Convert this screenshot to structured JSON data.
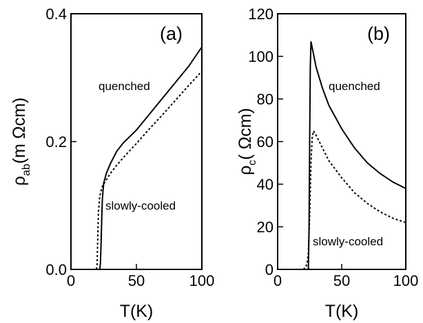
{
  "chart_data": [
    {
      "type": "line",
      "panel_label": "(a)",
      "xlabel": "T(K)",
      "ylabel": {
        "base": "ρ",
        "sub": "ab",
        "unit": "(m Ωcm)"
      },
      "xlim": [
        0,
        100
      ],
      "ylim": [
        0,
        0.4
      ],
      "xticks": [
        0,
        50,
        100
      ],
      "yticks": [
        0.0,
        0.2,
        0.4
      ],
      "ytick_labels": [
        "0.0",
        "0.2",
        "0.4"
      ],
      "series": [
        {
          "name": "quenched",
          "style": "solid",
          "points": [
            [
              22,
              0
            ],
            [
              22.5,
              0.01
            ],
            [
              23,
              0.04
            ],
            [
              23.5,
              0.08
            ],
            [
              24,
              0.11
            ],
            [
              25,
              0.135
            ],
            [
              27,
              0.15
            ],
            [
              30,
              0.165
            ],
            [
              35,
              0.185
            ],
            [
              40,
              0.198
            ],
            [
              50,
              0.218
            ],
            [
              60,
              0.243
            ],
            [
              70,
              0.268
            ],
            [
              80,
              0.293
            ],
            [
              90,
              0.318
            ],
            [
              100,
              0.348
            ]
          ]
        },
        {
          "name": "slowly-cooled",
          "style": "dotted",
          "points": [
            [
              19.5,
              0
            ],
            [
              20,
              0.01
            ],
            [
              20.5,
              0.05
            ],
            [
              21,
              0.09
            ],
            [
              22,
              0.115
            ],
            [
              24,
              0.13
            ],
            [
              27,
              0.14
            ],
            [
              30,
              0.15
            ],
            [
              35,
              0.163
            ],
            [
              40,
              0.175
            ],
            [
              50,
              0.197
            ],
            [
              60,
              0.22
            ],
            [
              70,
              0.242
            ],
            [
              80,
              0.265
            ],
            [
              90,
              0.288
            ],
            [
              100,
              0.31
            ]
          ]
        }
      ]
    },
    {
      "type": "line",
      "panel_label": "(b)",
      "xlabel": "T(K)",
      "ylabel": {
        "base": "ρ",
        "sub": "c",
        "unit": "( Ωcm)"
      },
      "xlim": [
        0,
        100
      ],
      "ylim": [
        0,
        120
      ],
      "xticks": [
        0,
        50,
        100
      ],
      "yticks": [
        0,
        20,
        40,
        60,
        80,
        100,
        120
      ],
      "ytick_labels": [
        "0",
        "20",
        "40",
        "60",
        "80",
        "100",
        "120"
      ],
      "series": [
        {
          "name": "quenched",
          "style": "solid",
          "points": [
            [
              24,
              0
            ],
            [
              24.5,
              20
            ],
            [
              25,
              60
            ],
            [
              25.5,
              95
            ],
            [
              26,
              107
            ],
            [
              27,
              104
            ],
            [
              30,
              95
            ],
            [
              35,
              85
            ],
            [
              40,
              77
            ],
            [
              50,
              66
            ],
            [
              60,
              57
            ],
            [
              70,
              50
            ],
            [
              80,
              45
            ],
            [
              90,
              41
            ],
            [
              100,
              38
            ]
          ]
        },
        {
          "name": "slowly-cooled",
          "style": "dotted",
          "points": [
            [
              20,
              0
            ],
            [
              22,
              1
            ],
            [
              23,
              3
            ],
            [
              24,
              8
            ],
            [
              25,
              25
            ],
            [
              26,
              50
            ],
            [
              27,
              62
            ],
            [
              28,
              65
            ],
            [
              30,
              63
            ],
            [
              35,
              57
            ],
            [
              40,
              51
            ],
            [
              50,
              43
            ],
            [
              60,
              36
            ],
            [
              70,
              31
            ],
            [
              80,
              27
            ],
            [
              90,
              24
            ],
            [
              100,
              22
            ]
          ]
        }
      ]
    }
  ]
}
